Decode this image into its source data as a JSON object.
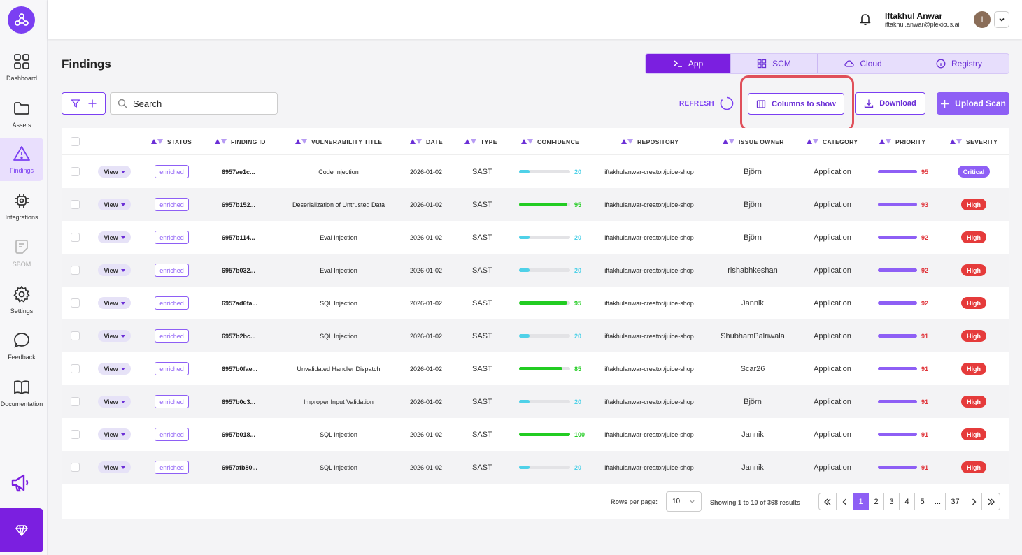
{
  "sidebar": {
    "items": [
      {
        "label": "Dashboard",
        "icon": "grid-icon"
      },
      {
        "label": "Assets",
        "icon": "folder-icon"
      },
      {
        "label": "Findings",
        "icon": "warning-icon"
      },
      {
        "label": "Integrations",
        "icon": "chip-icon"
      },
      {
        "label": "SBOM",
        "icon": "document-icon"
      },
      {
        "label": "Settings",
        "icon": "gear-icon"
      },
      {
        "label": "Feedback",
        "icon": "chat-icon"
      },
      {
        "label": "Documentation",
        "icon": "book-icon"
      }
    ],
    "active": "Findings"
  },
  "user": {
    "name": "Iftakhul Anwar",
    "email": "iftakhul.anwar@plexicus.ai",
    "avatar_initial": "I"
  },
  "page": {
    "title": "Findings"
  },
  "source_tabs": [
    {
      "label": "App",
      "icon": "terminal-icon"
    },
    {
      "label": "SCM",
      "icon": "grid-icon"
    },
    {
      "label": "Cloud",
      "icon": "cloud-icon"
    },
    {
      "label": "Registry",
      "icon": "info-icon"
    }
  ],
  "toolbar": {
    "search_placeholder": "Search",
    "refresh_label": "REFRESH",
    "columns_label": "Columns to show",
    "download_label": "Download",
    "upload_label": "Upload Scan"
  },
  "table": {
    "headers": {
      "status": "STATUS",
      "finding_id": "FINDING ID",
      "title": "VULNERABILITY TITLE",
      "date": "DATE",
      "type": "TYPE",
      "confidence": "CONFIDENCE",
      "repository": "REPOSITORY",
      "owner": "ISSUE OWNER",
      "category": "CATEGORY",
      "priority": "PRIORITY",
      "severity": "SEVERITY"
    },
    "view_label": "View",
    "rows": [
      {
        "status": "enriched",
        "id": "6957ae1c...",
        "title": "Code Injection",
        "date": "2026-01-02",
        "type": "SAST",
        "confidence": 20,
        "repo": "iftakhulanwar-creator/juice-shop",
        "owner": "Björn",
        "category": "Application",
        "priority": 95,
        "severity": "Critical"
      },
      {
        "status": "enriched",
        "id": "6957b152...",
        "title": "Deserialization of Untrusted Data",
        "date": "2026-01-02",
        "type": "SAST",
        "confidence": 95,
        "repo": "iftakhulanwar-creator/juice-shop",
        "owner": "Björn",
        "category": "Application",
        "priority": 93,
        "severity": "High"
      },
      {
        "status": "enriched",
        "id": "6957b114...",
        "title": "Eval Injection",
        "date": "2026-01-02",
        "type": "SAST",
        "confidence": 20,
        "repo": "iftakhulanwar-creator/juice-shop",
        "owner": "Björn",
        "category": "Application",
        "priority": 92,
        "severity": "High"
      },
      {
        "status": "enriched",
        "id": "6957b032...",
        "title": "Eval Injection",
        "date": "2026-01-02",
        "type": "SAST",
        "confidence": 20,
        "repo": "iftakhulanwar-creator/juice-shop",
        "owner": "rishabhkeshan",
        "category": "Application",
        "priority": 92,
        "severity": "High"
      },
      {
        "status": "enriched",
        "id": "6957ad6fa...",
        "title": "SQL Injection",
        "date": "2026-01-02",
        "type": "SAST",
        "confidence": 95,
        "repo": "iftakhulanwar-creator/juice-shop",
        "owner": "Jannik",
        "category": "Application",
        "priority": 92,
        "severity": "High"
      },
      {
        "status": "enriched",
        "id": "6957b2bc...",
        "title": "SQL Injection",
        "date": "2026-01-02",
        "type": "SAST",
        "confidence": 20,
        "repo": "iftakhulanwar-creator/juice-shop",
        "owner": "ShubhamPalriwala",
        "category": "Application",
        "priority": 91,
        "severity": "High"
      },
      {
        "status": "enriched",
        "id": "6957b0fae...",
        "title": "Unvalidated Handler Dispatch",
        "date": "2026-01-02",
        "type": "SAST",
        "confidence": 85,
        "repo": "iftakhulanwar-creator/juice-shop",
        "owner": "Scar26",
        "category": "Application",
        "priority": 91,
        "severity": "High"
      },
      {
        "status": "enriched",
        "id": "6957b0c3...",
        "title": "Improper Input Validation",
        "date": "2026-01-02",
        "type": "SAST",
        "confidence": 20,
        "repo": "iftakhulanwar-creator/juice-shop",
        "owner": "Björn",
        "category": "Application",
        "priority": 91,
        "severity": "High"
      },
      {
        "status": "enriched",
        "id": "6957b018...",
        "title": "SQL Injection",
        "date": "2026-01-02",
        "type": "SAST",
        "confidence": 100,
        "repo": "iftakhulanwar-creator/juice-shop",
        "owner": "Jannik",
        "category": "Application",
        "priority": 91,
        "severity": "High"
      },
      {
        "status": "enriched",
        "id": "6957afb80...",
        "title": "SQL Injection",
        "date": "2026-01-02",
        "type": "SAST",
        "confidence": 20,
        "repo": "iftakhulanwar-creator/juice-shop",
        "owner": "Jannik",
        "category": "Application",
        "priority": 91,
        "severity": "High"
      }
    ]
  },
  "pagination": {
    "rows_per_page_label": "Rows per page:",
    "rows_per_page": "10",
    "showing": "Showing 1 to 10 of 368 results",
    "pages": [
      "1",
      "2",
      "3",
      "4",
      "5",
      "...",
      "37"
    ],
    "current": "1"
  },
  "colors": {
    "accent": "#7b3ff2",
    "confidence_low": "#4fd1e8",
    "confidence_high": "#22cc22",
    "critical": "#8e5ff5",
    "high": "#e53b3b"
  }
}
